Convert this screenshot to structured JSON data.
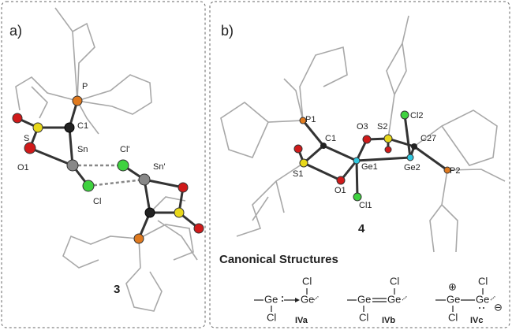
{
  "panels": [
    {
      "label": "a)",
      "atom_labels": [
        "P",
        "C1",
        "S",
        "Sn",
        "Cl'",
        "Sn'",
        "O1",
        "Cl"
      ],
      "compound": "3"
    },
    {
      "label": "b)",
      "atom_labels": [
        "P1",
        "C1",
        "O3",
        "S2",
        "Cl2",
        "C27",
        "S1",
        "Ge1",
        "Ge2",
        "P2",
        "O1",
        "Cl1"
      ],
      "compound": "4",
      "canonical": {
        "title": "Canonical Structures",
        "structures": [
          {
            "atoms": [
              "Ge",
              "Ge",
              "Cl",
              "Cl"
            ],
            "label": "IVa"
          },
          {
            "atoms": [
              "Ge",
              "Ge",
              "Cl",
              "Cl"
            ],
            "label": "IVb"
          },
          {
            "atoms": [
              "Ge",
              "Ge",
              "Cl",
              "Cl"
            ],
            "label": "IVc",
            "charges": [
              "⊕",
              "⊖"
            ]
          }
        ]
      }
    }
  ]
}
